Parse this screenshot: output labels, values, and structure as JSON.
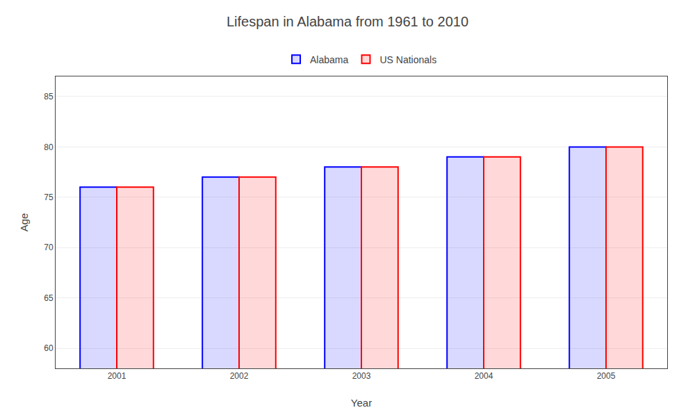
{
  "chart_data": {
    "type": "bar",
    "title": "Lifespan in Alabama from 1961 to 2010",
    "xlabel": "Year",
    "ylabel": "Age",
    "categories": [
      "2001",
      "2002",
      "2003",
      "2004",
      "2005"
    ],
    "series": [
      {
        "name": "Alabama",
        "color": "#0000ff",
        "values": [
          76,
          77,
          78,
          79,
          80
        ]
      },
      {
        "name": "US Nationals",
        "color": "#ff0000",
        "values": [
          76,
          77,
          78,
          79,
          80
        ]
      }
    ],
    "ylim": [
      58,
      87
    ],
    "yticks": [
      60,
      65,
      70,
      75,
      80,
      85
    ],
    "grid": true,
    "legend": "top"
  }
}
